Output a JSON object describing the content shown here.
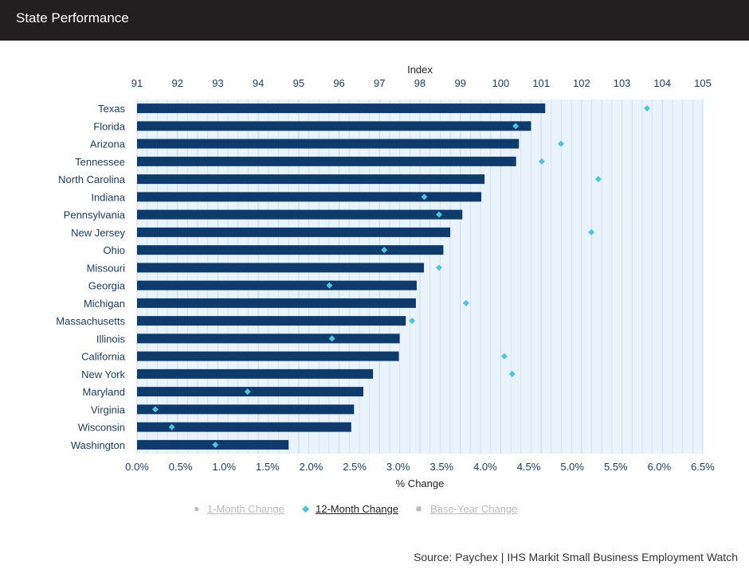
{
  "header": {
    "title": "State Performance"
  },
  "chart_data": {
    "type": "bar",
    "orientation": "horizontal",
    "top_axis": {
      "label": "Index",
      "range": [
        91,
        105
      ],
      "ticks": [
        "91",
        "92",
        "93",
        "94",
        "95",
        "96",
        "97",
        "98",
        "99",
        "100",
        "101",
        "102",
        "103",
        "104",
        "105"
      ]
    },
    "bottom_axis": {
      "label": "% Change",
      "range": [
        0,
        6.5
      ],
      "ticks": [
        "0.0%",
        "0.5%",
        "1.0%",
        "1.5%",
        "2.0%",
        "2.5%",
        "3.0%",
        "3.5%",
        "4.0%",
        "4.5%",
        "5.0%",
        "5.5%",
        "6.0%",
        "6.5%"
      ]
    },
    "grid": true,
    "legend_position": "bottom",
    "categories": [
      "Texas",
      "Florida",
      "Arizona",
      "Tennessee",
      "North Carolina",
      "Indiana",
      "Pennsylvania",
      "New Jersey",
      "Ohio",
      "Missouri",
      "Georgia",
      "Michigan",
      "Massachusetts",
      "Illinois",
      "California",
      "New York",
      "Maryland",
      "Virginia",
      "Wisconsin",
      "Washington"
    ],
    "series": [
      {
        "name": "Base-Year Change",
        "type": "bar",
        "axis": "top",
        "color": "#0e3a6c",
        "values": [
          101.1,
          100.75,
          100.45,
          100.38,
          99.6,
          99.52,
          99.05,
          98.75,
          98.58,
          98.1,
          97.92,
          97.9,
          97.65,
          97.5,
          97.48,
          96.84,
          96.6,
          96.37,
          96.3,
          94.75
        ]
      },
      {
        "name": "12-Month Change",
        "type": "scatter",
        "axis": "bottom",
        "color": "#4fc3e0",
        "values": [
          5.86,
          4.35,
          4.87,
          4.65,
          5.3,
          3.3,
          3.47,
          5.22,
          2.84,
          3.47,
          2.21,
          3.78,
          3.16,
          2.24,
          4.22,
          4.31,
          1.27,
          0.21,
          0.4,
          0.9
        ]
      }
    ],
    "legend": [
      {
        "name": "1-Month Change",
        "marker": "circle",
        "active": false
      },
      {
        "name": "12-Month Change",
        "marker": "diamond",
        "active": true
      },
      {
        "name": "Base-Year Change",
        "marker": "square",
        "active": false
      }
    ],
    "colors": {
      "bar": "#0e3a6c",
      "marker": "#4fc3e0",
      "axis_text": "#1a3a5c",
      "plot_bg": "#e8f3fc",
      "grid": "#c7dbec",
      "legend_inactive": "#bbbbbb"
    }
  },
  "source": "Source: Paychex | IHS Markit Small Business Employment Watch"
}
